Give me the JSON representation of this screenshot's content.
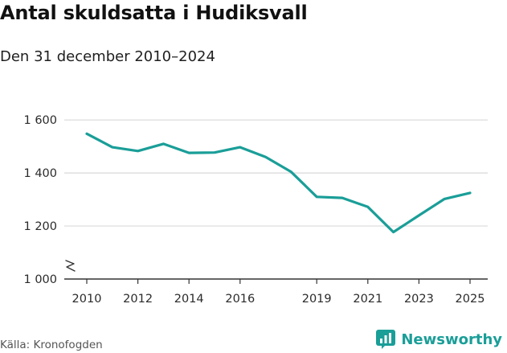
{
  "header": {
    "title": "Antal skuldsatta i Hudiksvall",
    "subtitle": "Den 31 december 2010–2024"
  },
  "footer": {
    "source": "Källa: Kronofogden",
    "brand": "Newsworthy"
  },
  "colors": {
    "line": "#1a9e98",
    "grid": "#d9d9d9",
    "axis": "#333333",
    "brand": "#1a9e98"
  },
  "icons": {
    "brand": "newsworthy-logo-icon",
    "axis_break": "axis-break-icon"
  },
  "chart_data": {
    "type": "line",
    "title": "Antal skuldsatta i Hudiksvall",
    "subtitle": "Den 31 december 2010–2024",
    "xlabel": "",
    "ylabel": "",
    "x": [
      2010,
      2011,
      2012,
      2013,
      2014,
      2015,
      2016,
      2017,
      2018,
      2019,
      2020,
      2021,
      2022,
      2023,
      2024,
      2025
    ],
    "series": [
      {
        "values": [
          1548,
          1497,
          1483,
          1510,
          1476,
          1477,
          1497,
          1460,
          1404,
          1310,
          1306,
          1272,
          1177,
          1240,
          1302,
          1325
        ]
      }
    ],
    "x_ticks": [
      2010,
      2012,
      2014,
      2016,
      2019,
      2021,
      2023,
      2025
    ],
    "x_tick_labels": [
      "2010",
      "2012",
      "2014",
      "2016",
      "2019",
      "2021",
      "2023",
      "2025"
    ],
    "y_ticks": [
      1000,
      1200,
      1400,
      1600
    ],
    "y_tick_labels": [
      "1 000",
      "1 200",
      "1 400",
      "1 600"
    ],
    "ylim": [
      1000,
      1640
    ],
    "xlim": [
      2010,
      2025
    ],
    "y_axis_break": true,
    "grid": true,
    "legend": "none"
  }
}
